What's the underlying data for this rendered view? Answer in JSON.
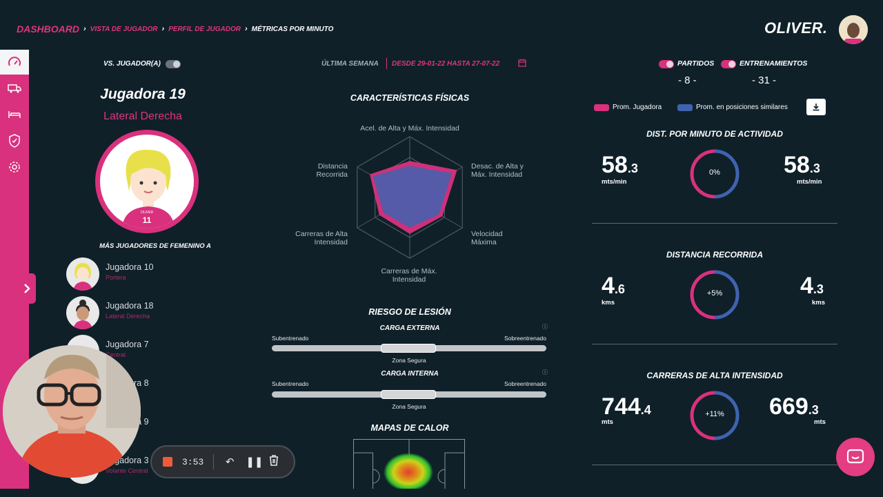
{
  "breadcrumb": {
    "items": [
      "DASHBOARD",
      "VISTA DE JUGADOR",
      "PERFIL DE JUGADOR",
      "MÉTRICAS POR MINUTO"
    ]
  },
  "brand": {
    "logo": "OLIVER."
  },
  "sidebar": {
    "icons": [
      "speedometer-icon",
      "truck-icon",
      "bed-icon",
      "shield-icon",
      "gear-icon"
    ],
    "expand_icon": "chevron-right-icon"
  },
  "player": {
    "vs_label": "VS. JUGADOR(A)",
    "name": "Jugadora 19",
    "position": "Lateral Derecha",
    "shirt_number": "11",
    "shirt_text": "OLIVER"
  },
  "more_players": {
    "title": "MÁS JUGADORES DE FEMENINO A",
    "items": [
      {
        "name": "Jugadora 10",
        "role": "Portera"
      },
      {
        "name": "Jugadora 18",
        "role": "Lateral Derecha"
      },
      {
        "name": "Jugadora 7",
        "role": "Central"
      },
      {
        "name": "Jugadora 8",
        "role": ""
      },
      {
        "name": "Jugadora 9",
        "role": ""
      },
      {
        "name": "Jugadora 3",
        "role": "Volante Central"
      }
    ]
  },
  "recorder": {
    "time": "3:53"
  },
  "period": {
    "week_label": "ÚLTIMA SEMANA",
    "range": "DESDE 29-01-22 HASTA 27-07-22"
  },
  "physical": {
    "title": "CARACTERÍSTICAS FÍSICAS",
    "axes": [
      "Acel. de Alta y Máx. Intensidad",
      "Desac. de Alta y Máx. Intensidad",
      "Velocidad Máxima",
      "Carreras de Máx. Intensidad",
      "Carreras de Alta Intensidad",
      "Distancia Recorrida"
    ],
    "player_values": [
      0.6,
      0.9,
      0.62,
      0.6,
      0.58,
      0.76
    ],
    "similar_values": [
      0.52,
      0.8,
      0.56,
      0.5,
      0.5,
      0.7
    ]
  },
  "injury": {
    "title": "RIESGO DE LESIÓN",
    "external": {
      "title": "CARGA EXTERNA",
      "left": "Subentrenado",
      "right": "Sobreentrenado",
      "center": "Zona Segura"
    },
    "internal": {
      "title": "CARGA INTERNA",
      "left": "Subentrenado",
      "right": "Sobreentrenado",
      "center": "Zona Segura"
    }
  },
  "heatmap": {
    "title": "MAPAS DE CALOR"
  },
  "filters": {
    "matches_label": "PARTIDOS",
    "matches_count": "- 8 -",
    "trainings_label": "ENTRENAMIENTOS",
    "trainings_count": "- 31 -"
  },
  "legend": {
    "player": "Prom. Jugadora",
    "similar": "Prom. en posiciones similares",
    "player_color": "#d9317d",
    "similar_color": "#3f63b0"
  },
  "metrics": [
    {
      "title": "DIST. POR MINUTO DE ACTIVIDAD",
      "left_int": "58",
      "left_dec": ".3",
      "left_unit": "mts/min",
      "ring": "0%",
      "right_int": "58",
      "right_dec": ".3",
      "right_unit": "mts/min"
    },
    {
      "title": "DISTANCIA RECORRIDA",
      "left_int": "4",
      "left_dec": ".6",
      "left_unit": "kms",
      "ring": "+5%",
      "right_int": "4",
      "right_dec": ".3",
      "right_unit": "kms"
    },
    {
      "title": "CARRERAS DE ALTA INTENSIDAD",
      "left_int": "744",
      "left_dec": ".4",
      "left_unit": "mts",
      "ring": "+11%",
      "right_int": "669",
      "right_dec": ".3",
      "right_unit": "mts"
    }
  ]
}
